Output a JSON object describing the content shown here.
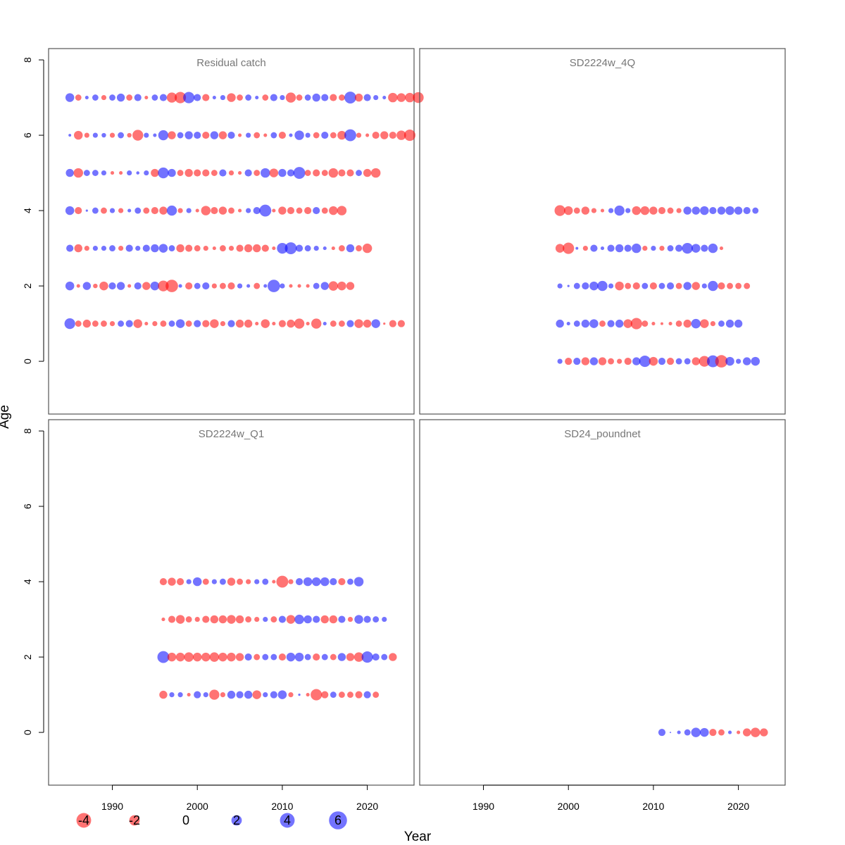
{
  "chart_data": {
    "type": "scatter",
    "subtype": "bubble",
    "xlabel": "Year",
    "ylabel": "Age",
    "colors": {
      "positive": "#0000ff",
      "negative": "#ff0000",
      "alpha": 0.55
    },
    "x_ticks": [
      1990,
      2000,
      2010,
      2020
    ],
    "y_ticks": [
      0,
      2,
      4,
      6,
      8
    ],
    "xlim": [
      1982.5,
      2025.5
    ],
    "ylim": [
      -1.4,
      8.3
    ],
    "legend": {
      "values": [
        "-4",
        "-2",
        "0",
        "2",
        "4",
        "6"
      ]
    },
    "panels": [
      {
        "title": "Residual catch",
        "x_start": 1985,
        "rows": [
          {
            "age": 7,
            "residuals": [
              3.0,
              -1.5,
              0.5,
              1.5,
              -1.0,
              1.5,
              2.5,
              -1.5,
              2.0,
              -0.5,
              1.5,
              2.0,
              -4.0,
              -5.0,
              5.0,
              2.0,
              -2.0,
              0.5,
              1.0,
              -3.0,
              -1.5,
              1.5,
              0.5,
              -1.5,
              2.0,
              1.0,
              -4.0,
              -1.5,
              1.5,
              2.5,
              2.0,
              -2.0,
              -1.5,
              5.5,
              -2.5,
              2.0,
              1.0,
              0.5,
              -3.5,
              -3.0,
              -3.5,
              -4.5
            ]
          },
          {
            "age": 6,
            "residuals": [
              0.3,
              -3.0,
              -1.0,
              1.0,
              0.8,
              -1.0,
              1.5,
              -0.8,
              -4.5,
              1.0,
              0.5,
              4.0,
              -2.5,
              1.5,
              2.5,
              2.0,
              -2.0,
              2.5,
              -2.5,
              2.0,
              -0.5,
              1.0,
              -1.5,
              -0.5,
              1.5,
              -2.0,
              0.5,
              3.5,
              1.0,
              -1.5,
              2.0,
              -1.5,
              -3.0,
              5.5,
              -1.0,
              -0.5,
              -2.0,
              -2.5,
              -2.0,
              -3.5,
              -5.0
            ]
          },
          {
            "age": 5,
            "residuals": [
              2.5,
              -3.5,
              1.5,
              1.5,
              1.0,
              -0.5,
              -0.5,
              1.0,
              0.4,
              1.0,
              -2.5,
              4.5,
              2.5,
              -1.5,
              -2.5,
              -2.0,
              -2.0,
              -1.5,
              2.0,
              -1.0,
              -0.5,
              2.0,
              -1.5,
              3.5,
              -3.0,
              2.5,
              2.0,
              5.5,
              -1.5,
              -2.0,
              -1.5,
              -3.5,
              -2.0,
              -2.0,
              1.5,
              -2.5,
              -3.5
            ]
          },
          {
            "age": 4,
            "residuals": [
              3.0,
              -2.0,
              0.2,
              1.5,
              -1.5,
              1.0,
              -1.0,
              0.5,
              1.5,
              -1.5,
              -2.0,
              -2.5,
              4.0,
              -1.0,
              1.0,
              -0.5,
              -3.5,
              -2.0,
              -2.5,
              -1.5,
              -0.5,
              1.0,
              2.0,
              5.5,
              -0.5,
              -2.5,
              -2.0,
              -1.5,
              -2.0,
              2.0,
              -1.5,
              -3.0,
              -3.5
            ]
          },
          {
            "age": 3,
            "residuals": [
              2.0,
              -2.5,
              -1.0,
              1.0,
              1.0,
              1.5,
              -1.0,
              2.0,
              1.0,
              2.0,
              2.5,
              3.0,
              1.5,
              -2.5,
              -2.0,
              -1.5,
              -1.0,
              -0.5,
              -1.5,
              -1.0,
              -2.0,
              -2.5,
              -2.5,
              -2.0,
              -0.5,
              4.5,
              5.5,
              2.0,
              1.5,
              1.0,
              0.5,
              -0.5,
              -1.5,
              2.5,
              -1.5,
              -3.5
            ]
          },
          {
            "age": 2,
            "residuals": [
              3.0,
              -0.5,
              2.5,
              -0.8,
              -3.0,
              2.0,
              2.5,
              -0.5,
              2.0,
              -2.5,
              3.0,
              -4.5,
              -6.0,
              0.5,
              -2.0,
              1.5,
              2.0,
              -1.0,
              -1.5,
              -2.0,
              1.0,
              0.5,
              -1.5,
              0.5,
              6.0,
              1.0,
              -0.5,
              -0.5,
              -0.5,
              1.5,
              2.5,
              -3.5,
              -3.0,
              -2.5
            ]
          },
          {
            "age": 1,
            "residuals": [
              4.5,
              -1.5,
              -2.5,
              -1.5,
              -1.5,
              -1.0,
              1.5,
              2.0,
              -3.0,
              -0.5,
              -1.0,
              -1.5,
              1.5,
              3.0,
              -1.5,
              2.0,
              -2.0,
              -3.0,
              -1.0,
              2.0,
              -2.5,
              -2.5,
              -0.5,
              -3.0,
              -0.5,
              -2.0,
              -2.5,
              -4.0,
              -0.5,
              -4.0,
              0.5,
              -1.5,
              -1.5,
              2.0,
              -3.0,
              -2.5,
              3.0,
              -0.2,
              -2.0,
              -2.0
            ]
          }
        ]
      },
      {
        "title": "SD2224w_4Q",
        "x_start": 1999,
        "rows": [
          {
            "age": 4,
            "residuals": [
              -4.5,
              -3.0,
              -1.5,
              -2.5,
              -1.0,
              -0.5,
              1.0,
              4.0,
              1.0,
              -3.0,
              -3.0,
              -2.5,
              -2.0,
              -1.5,
              -1.0,
              2.5,
              2.5,
              3.0,
              2.0,
              2.5,
              3.0,
              2.5,
              2.0,
              1.5
            ]
          },
          {
            "age": 3,
            "residuals": [
              -3.0,
              -5.0,
              0.3,
              -1.0,
              2.0,
              0.5,
              2.0,
              2.5,
              2.0,
              3.5,
              -1.0,
              1.0,
              -1.0,
              1.5,
              2.0,
              4.5,
              3.0,
              2.0,
              3.5,
              -0.5
            ]
          },
          {
            "age": 2,
            "residuals": [
              1.0,
              0.2,
              1.5,
              2.0,
              3.0,
              4.0,
              1.0,
              -3.0,
              -1.5,
              -2.0,
              1.5,
              -2.0,
              1.5,
              2.0,
              -1.5,
              2.5,
              -2.5,
              1.0,
              4.0,
              -2.0,
              -1.5,
              -1.5,
              -1.5
            ]
          },
          {
            "age": 1,
            "residuals": [
              2.5,
              0.5,
              1.5,
              2.5,
              3.0,
              -1.5,
              2.0,
              2.5,
              -3.0,
              -5.0,
              -1.5,
              -0.5,
              -0.3,
              -0.5,
              -1.5,
              -2.5,
              3.5,
              -3.0,
              -1.0,
              1.5,
              2.5,
              2.5
            ]
          },
          {
            "age": 0,
            "residuals": [
              1.0,
              -2.0,
              2.0,
              -2.5,
              2.5,
              -2.5,
              -1.5,
              -1.0,
              -2.0,
              2.5,
              5.0,
              -3.0,
              2.0,
              -2.0,
              1.5,
              1.5,
              -2.5,
              -4.5,
              5.5,
              -6.0,
              3.0,
              1.0,
              2.5,
              3.0
            ]
          }
        ]
      },
      {
        "title": "SD2224w_Q1",
        "x_start": 1996,
        "rows": [
          {
            "age": 4,
            "residuals": [
              -2.0,
              -2.5,
              -2.0,
              1.0,
              3.0,
              -1.5,
              1.0,
              1.5,
              -2.5,
              -1.5,
              -1.0,
              1.0,
              1.5,
              -0.5,
              -5.5,
              -1.0,
              2.0,
              3.0,
              3.0,
              3.0,
              2.0,
              -2.0,
              1.5,
              3.5
            ]
          },
          {
            "age": 3,
            "residuals": [
              -0.5,
              -2.0,
              -3.0,
              -1.5,
              -1.0,
              -2.0,
              -2.5,
              -2.5,
              -3.0,
              -2.5,
              -1.5,
              -1.0,
              1.0,
              -1.5,
              2.0,
              -3.0,
              3.5,
              2.5,
              2.0,
              -2.5,
              -2.5,
              2.0,
              -1.0,
              3.0,
              2.0,
              1.5,
              1.0
            ]
          },
          {
            "age": 2,
            "residuals": [
              5.5,
              -3.0,
              -3.0,
              -3.5,
              -3.0,
              -3.0,
              -3.5,
              -3.0,
              -3.0,
              -2.5,
              2.0,
              -1.5,
              1.5,
              1.5,
              -2.0,
              3.0,
              3.0,
              1.5,
              -2.0,
              1.5,
              -1.5,
              2.5,
              -2.5,
              -3.5,
              5.0,
              2.0,
              1.5,
              -2.5
            ]
          },
          {
            "age": 1,
            "residuals": [
              -2.5,
              1.0,
              1.0,
              -0.5,
              2.0,
              1.0,
              -4.0,
              -1.0,
              2.5,
              2.0,
              2.5,
              -3.0,
              1.0,
              2.0,
              3.0,
              -1.0,
              0.2,
              -0.5,
              -5.0,
              -2.0,
              1.5,
              -1.5,
              -1.5,
              -2.0,
              2.0,
              -1.5
            ]
          }
        ]
      },
      {
        "title": "SD24_poundnet",
        "x_start": 2011,
        "rows": [
          {
            "age": 0,
            "residuals": [
              2.0,
              0.0,
              0.5,
              1.5,
              3.5,
              3.0,
              -2.0,
              -1.5,
              0.5,
              -0.5,
              -2.5,
              -3.5,
              -2.5
            ]
          }
        ]
      }
    ]
  }
}
